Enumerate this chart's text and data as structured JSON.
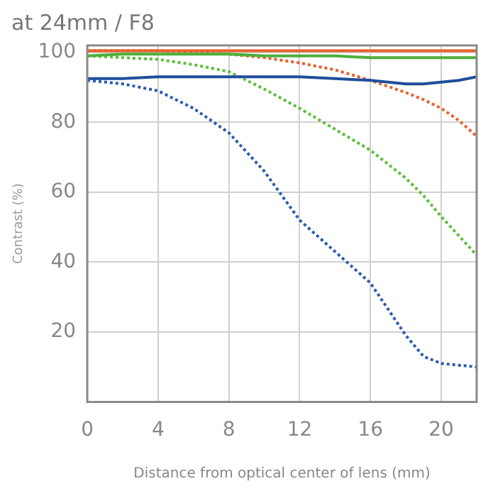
{
  "chart_data": {
    "type": "line",
    "title": "at 24mm / F8",
    "xlabel": "Distance from optical center of lens (mm)",
    "ylabel": "Contrast (%)",
    "x": [
      0,
      2,
      4,
      6,
      8,
      10,
      12,
      14,
      16,
      18,
      19,
      20,
      21,
      22
    ],
    "series": [
      {
        "color": "#e8602c",
        "line_style": "solid",
        "values": [
          100.5,
          100.5,
          100.5,
          100.5,
          100.5,
          100.5,
          100.5,
          100.5,
          100.5,
          100.5,
          100.5,
          100.5,
          100.5,
          100.5
        ]
      },
      {
        "color": "#4caf3a",
        "line_style": "solid",
        "values": [
          99,
          99.5,
          99.5,
          99.5,
          99.5,
          99,
          99,
          99,
          98.5,
          98.5,
          98.5,
          98.5,
          98.5,
          98.5
        ]
      },
      {
        "color": "#1f4e9c",
        "line_style": "solid",
        "values": [
          92.5,
          92.5,
          93,
          93,
          93,
          93,
          93,
          92.5,
          92,
          91,
          91,
          91.5,
          92,
          93
        ]
      },
      {
        "color": "#e8602c",
        "line_style": "dotted",
        "values": [
          100.5,
          100.5,
          100.5,
          100,
          99.5,
          98.5,
          97,
          95,
          92,
          88.5,
          86.5,
          84,
          80.5,
          76
        ]
      },
      {
        "color": "#5cbf3a",
        "line_style": "dotted",
        "values": [
          99,
          98.5,
          98,
          96.5,
          94.5,
          89.5,
          84,
          78,
          72,
          64,
          59,
          53,
          47.5,
          42
        ]
      },
      {
        "color": "#2a5cb0",
        "line_style": "dotted",
        "values": [
          92,
          91,
          89,
          84,
          77,
          66,
          52,
          43,
          34,
          19,
          13,
          11,
          10.5,
          10
        ]
      }
    ],
    "xlim": [
      0,
      22
    ],
    "xticks": [
      0,
      4,
      8,
      12,
      16,
      20
    ],
    "ylim": [
      0,
      102
    ],
    "yticks": [
      20,
      40,
      60,
      80,
      100
    ],
    "grid": true,
    "legend": false
  }
}
